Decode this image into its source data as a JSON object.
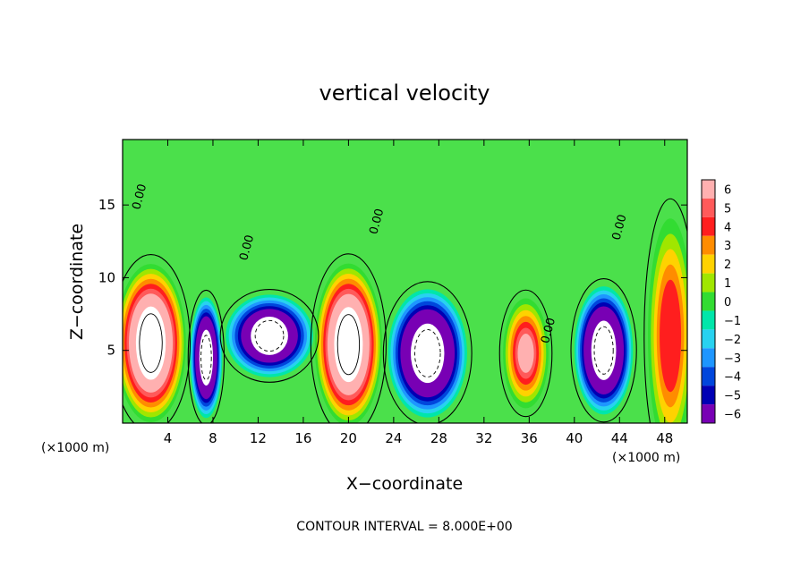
{
  "chart_data": {
    "type": "heatmap",
    "title": "vertical velocity",
    "xlabel": "X−coordinate",
    "ylabel": "Z−coordinate",
    "x_unit_left": "(×1000 m)",
    "x_unit_right": "(×1000 m)",
    "footer": "CONTOUR INTERVAL = 8.000E+00",
    "xlim": [
      0,
      50
    ],
    "ylim": [
      0,
      19.5
    ],
    "x_ticks": [
      4,
      8,
      12,
      16,
      20,
      24,
      28,
      32,
      36,
      40,
      44,
      48
    ],
    "x_tick_labels": [
      "4",
      "8",
      "12",
      "16",
      "20",
      "24",
      "28",
      "32",
      "36",
      "40",
      "44",
      "48"
    ],
    "y_ticks": [
      5,
      10,
      15
    ],
    "y_tick_labels": [
      "5",
      "10",
      "15"
    ],
    "colorbar": {
      "levels": [
        6,
        5,
        4,
        3,
        2,
        1,
        0,
        -1,
        -2,
        -3,
        -4,
        -5,
        -6
      ],
      "labels": [
        "6",
        "5",
        "4",
        "3",
        "2",
        "1",
        "0",
        "−1",
        "−2",
        "−3",
        "−4",
        "−5",
        "−6"
      ],
      "colors": [
        "#ffb0b0",
        "#ff5a5a",
        "#ff1e1e",
        "#ff8c00",
        "#ffd200",
        "#a0e600",
        "#32dc32",
        "#00e6aa",
        "#28d2f0",
        "#1e96ff",
        "#0046dc",
        "#0000b4",
        "#7800b4"
      ]
    },
    "contour_labels": [
      {
        "text": "0.00",
        "x": 1.8,
        "y": 15.5
      },
      {
        "text": "0.00",
        "x": 11.3,
        "y": 12.0
      },
      {
        "text": "0.00",
        "x": 22.8,
        "y": 13.8
      },
      {
        "text": "0.00",
        "x": 38.0,
        "y": 6.3
      },
      {
        "text": "0.00",
        "x": 44.3,
        "y": 13.4
      }
    ],
    "features": [
      {
        "kind": "updraft",
        "x": 2.5,
        "y": 5.5,
        "rx": 2.4,
        "ry": 4.2,
        "value": 10
      },
      {
        "kind": "updraft",
        "x": 20.0,
        "y": 5.4,
        "rx": 2.3,
        "ry": 4.3,
        "value": 10
      },
      {
        "kind": "updraft",
        "x": 35.7,
        "y": 4.8,
        "rx": 1.6,
        "ry": 3.0,
        "value": 6
      },
      {
        "kind": "updraft",
        "x": 48.5,
        "y": 6.0,
        "rx": 1.6,
        "ry": 6.5,
        "value": 5
      },
      {
        "kind": "downdraft",
        "x": 7.4,
        "y": 4.5,
        "rx": 1.1,
        "ry": 3.2,
        "value": -10
      },
      {
        "kind": "downdraft",
        "x": 13.0,
        "y": 6.0,
        "rx": 3.0,
        "ry": 2.2,
        "value": -9
      },
      {
        "kind": "downdraft",
        "x": 27.0,
        "y": 4.8,
        "rx": 2.7,
        "ry": 3.4,
        "value": -10
      },
      {
        "kind": "downdraft",
        "x": 42.6,
        "y": 5.0,
        "rx": 2.0,
        "ry": 3.4,
        "value": -10
      }
    ]
  }
}
